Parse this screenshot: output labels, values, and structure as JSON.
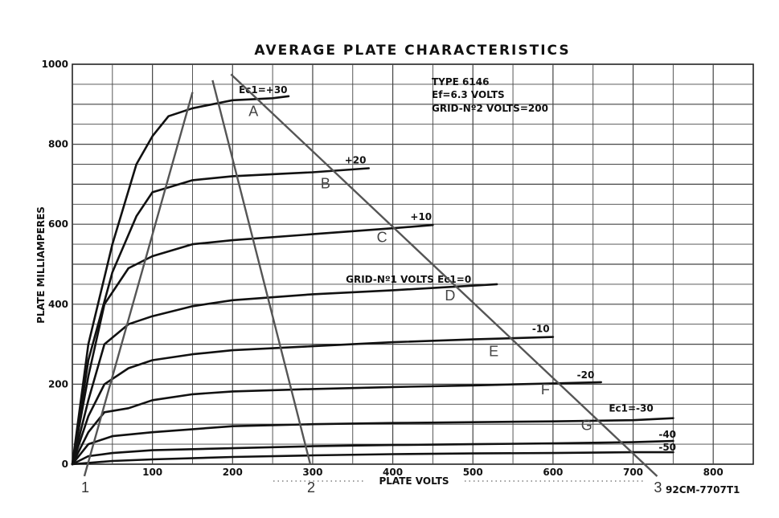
{
  "chart_data": {
    "type": "line",
    "title": "AVERAGE PLATE CHARACTERISTICS",
    "xlabel": "PLATE VOLTS",
    "ylabel": "PLATE MILLIAMPERES",
    "xlim": [
      0,
      850
    ],
    "ylim": [
      0,
      1000
    ],
    "x_ticks": [
      0,
      100,
      200,
      300,
      400,
      500,
      600,
      700,
      800
    ],
    "y_ticks": [
      0,
      200,
      400,
      600,
      800,
      1000
    ],
    "grid": true,
    "info_lines": [
      "TYPE 6146",
      "Ef=6.3 VOLTS",
      "GRID-Nº2 VOLTS=200"
    ],
    "footer_code": "92CM-7707T1",
    "series": [
      {
        "name": "Ec1=+30",
        "label": "Ec1=+30",
        "x": [
          0,
          20,
          50,
          80,
          100,
          120,
          150,
          200,
          250,
          270
        ],
        "y": [
          0,
          300,
          550,
          750,
          820,
          870,
          890,
          910,
          915,
          920
        ]
      },
      {
        "name": "+20",
        "label": "+20",
        "x": [
          0,
          20,
          50,
          80,
          100,
          150,
          200,
          250,
          300,
          370
        ],
        "y": [
          0,
          260,
          480,
          620,
          680,
          710,
          720,
          725,
          730,
          740
        ]
      },
      {
        "name": "+10",
        "label": "+10",
        "x": [
          0,
          20,
          40,
          70,
          100,
          150,
          200,
          300,
          400,
          450
        ],
        "y": [
          0,
          220,
          400,
          490,
          520,
          550,
          560,
          575,
          590,
          598
        ]
      },
      {
        "name": "0",
        "label": "GRID-Nº1 VOLTS Ec1=0",
        "x": [
          0,
          20,
          40,
          70,
          100,
          150,
          200,
          300,
          400,
          530
        ],
        "y": [
          0,
          160,
          300,
          350,
          370,
          395,
          410,
          425,
          435,
          450
        ]
      },
      {
        "name": "-10",
        "label": "-10",
        "x": [
          0,
          20,
          40,
          70,
          100,
          150,
          200,
          300,
          400,
          500,
          600
        ],
        "y": [
          0,
          120,
          200,
          240,
          260,
          275,
          285,
          295,
          305,
          312,
          318
        ]
      },
      {
        "name": "-20",
        "label": "-20",
        "x": [
          0,
          20,
          40,
          70,
          100,
          150,
          200,
          300,
          400,
          500,
          600,
          660
        ],
        "y": [
          0,
          80,
          130,
          140,
          160,
          175,
          182,
          188,
          193,
          197,
          202,
          205
        ]
      },
      {
        "name": "-30",
        "label": "Ec1=-30",
        "x": [
          0,
          20,
          50,
          100,
          200,
          300,
          400,
          500,
          600,
          700,
          750
        ],
        "y": [
          0,
          50,
          70,
          80,
          95,
          100,
          103,
          105,
          107,
          110,
          115
        ]
      },
      {
        "name": "-40",
        "label": "-40",
        "x": [
          0,
          20,
          50,
          100,
          200,
          300,
          400,
          500,
          600,
          700,
          750
        ],
        "y": [
          0,
          20,
          28,
          35,
          40,
          45,
          48,
          50,
          52,
          55,
          58
        ]
      },
      {
        "name": "-50",
        "label": "-50",
        "x": [
          0,
          50,
          100,
          200,
          300,
          400,
          500,
          600,
          700,
          750
        ],
        "y": [
          0,
          8,
          12,
          18,
          22,
          25,
          27,
          28,
          30,
          30
        ]
      }
    ],
    "load_lines": [
      {
        "name": "1",
        "x": [
          15,
          150
        ],
        "y": [
          -30,
          930
        ]
      },
      {
        "name": "2",
        "x": [
          175,
          297
        ],
        "y": [
          960,
          0
        ]
      },
      {
        "name": "3",
        "x": [
          198,
          730
        ],
        "y": [
          975,
          -30
        ]
      }
    ],
    "points": [
      {
        "label": "A",
        "x": 220,
        "y": 870
      },
      {
        "label": "B",
        "x": 310,
        "y": 690
      },
      {
        "label": "C",
        "x": 380,
        "y": 555
      },
      {
        "label": "D",
        "x": 465,
        "y": 410
      },
      {
        "label": "E",
        "x": 520,
        "y": 270
      },
      {
        "label": "F",
        "x": 585,
        "y": 175
      },
      {
        "label": "G",
        "x": 635,
        "y": 85
      }
    ]
  }
}
